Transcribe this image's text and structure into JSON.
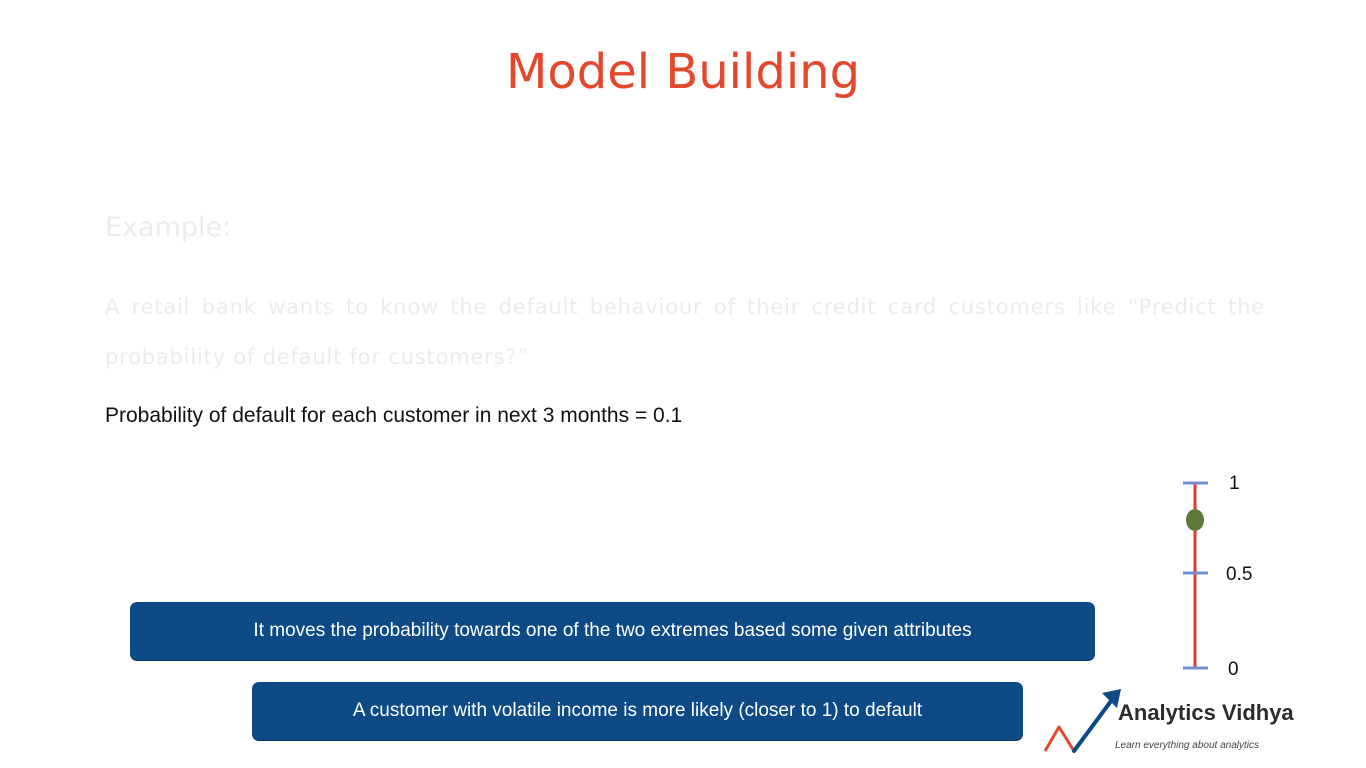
{
  "slide": {
    "title": "Model Building",
    "example_heading": "Example:",
    "example_text": "A retail bank wants to know the default behaviour of their credit card customers like “Predict the probability of default for customers?”",
    "probability_line": "Probability of default for each customer in next 3 months = 0.1"
  },
  "callouts": {
    "first": "It moves the probability towards one of the two extremes based some given attributes",
    "second": "A customer with volatile income is more likely (closer to 1) to default"
  },
  "scale": {
    "top_label": "1",
    "mid_label": "0.5",
    "bottom_label": "0",
    "marker_value": 0.8,
    "colors": {
      "line": "#e0382a",
      "ticks": "#6f8fcf",
      "marker": "#5b7a3c"
    }
  },
  "logo": {
    "name": "Analytics Vidhya",
    "tagline": "Learn everything about analytics",
    "icon": "arrow-chart-icon"
  }
}
